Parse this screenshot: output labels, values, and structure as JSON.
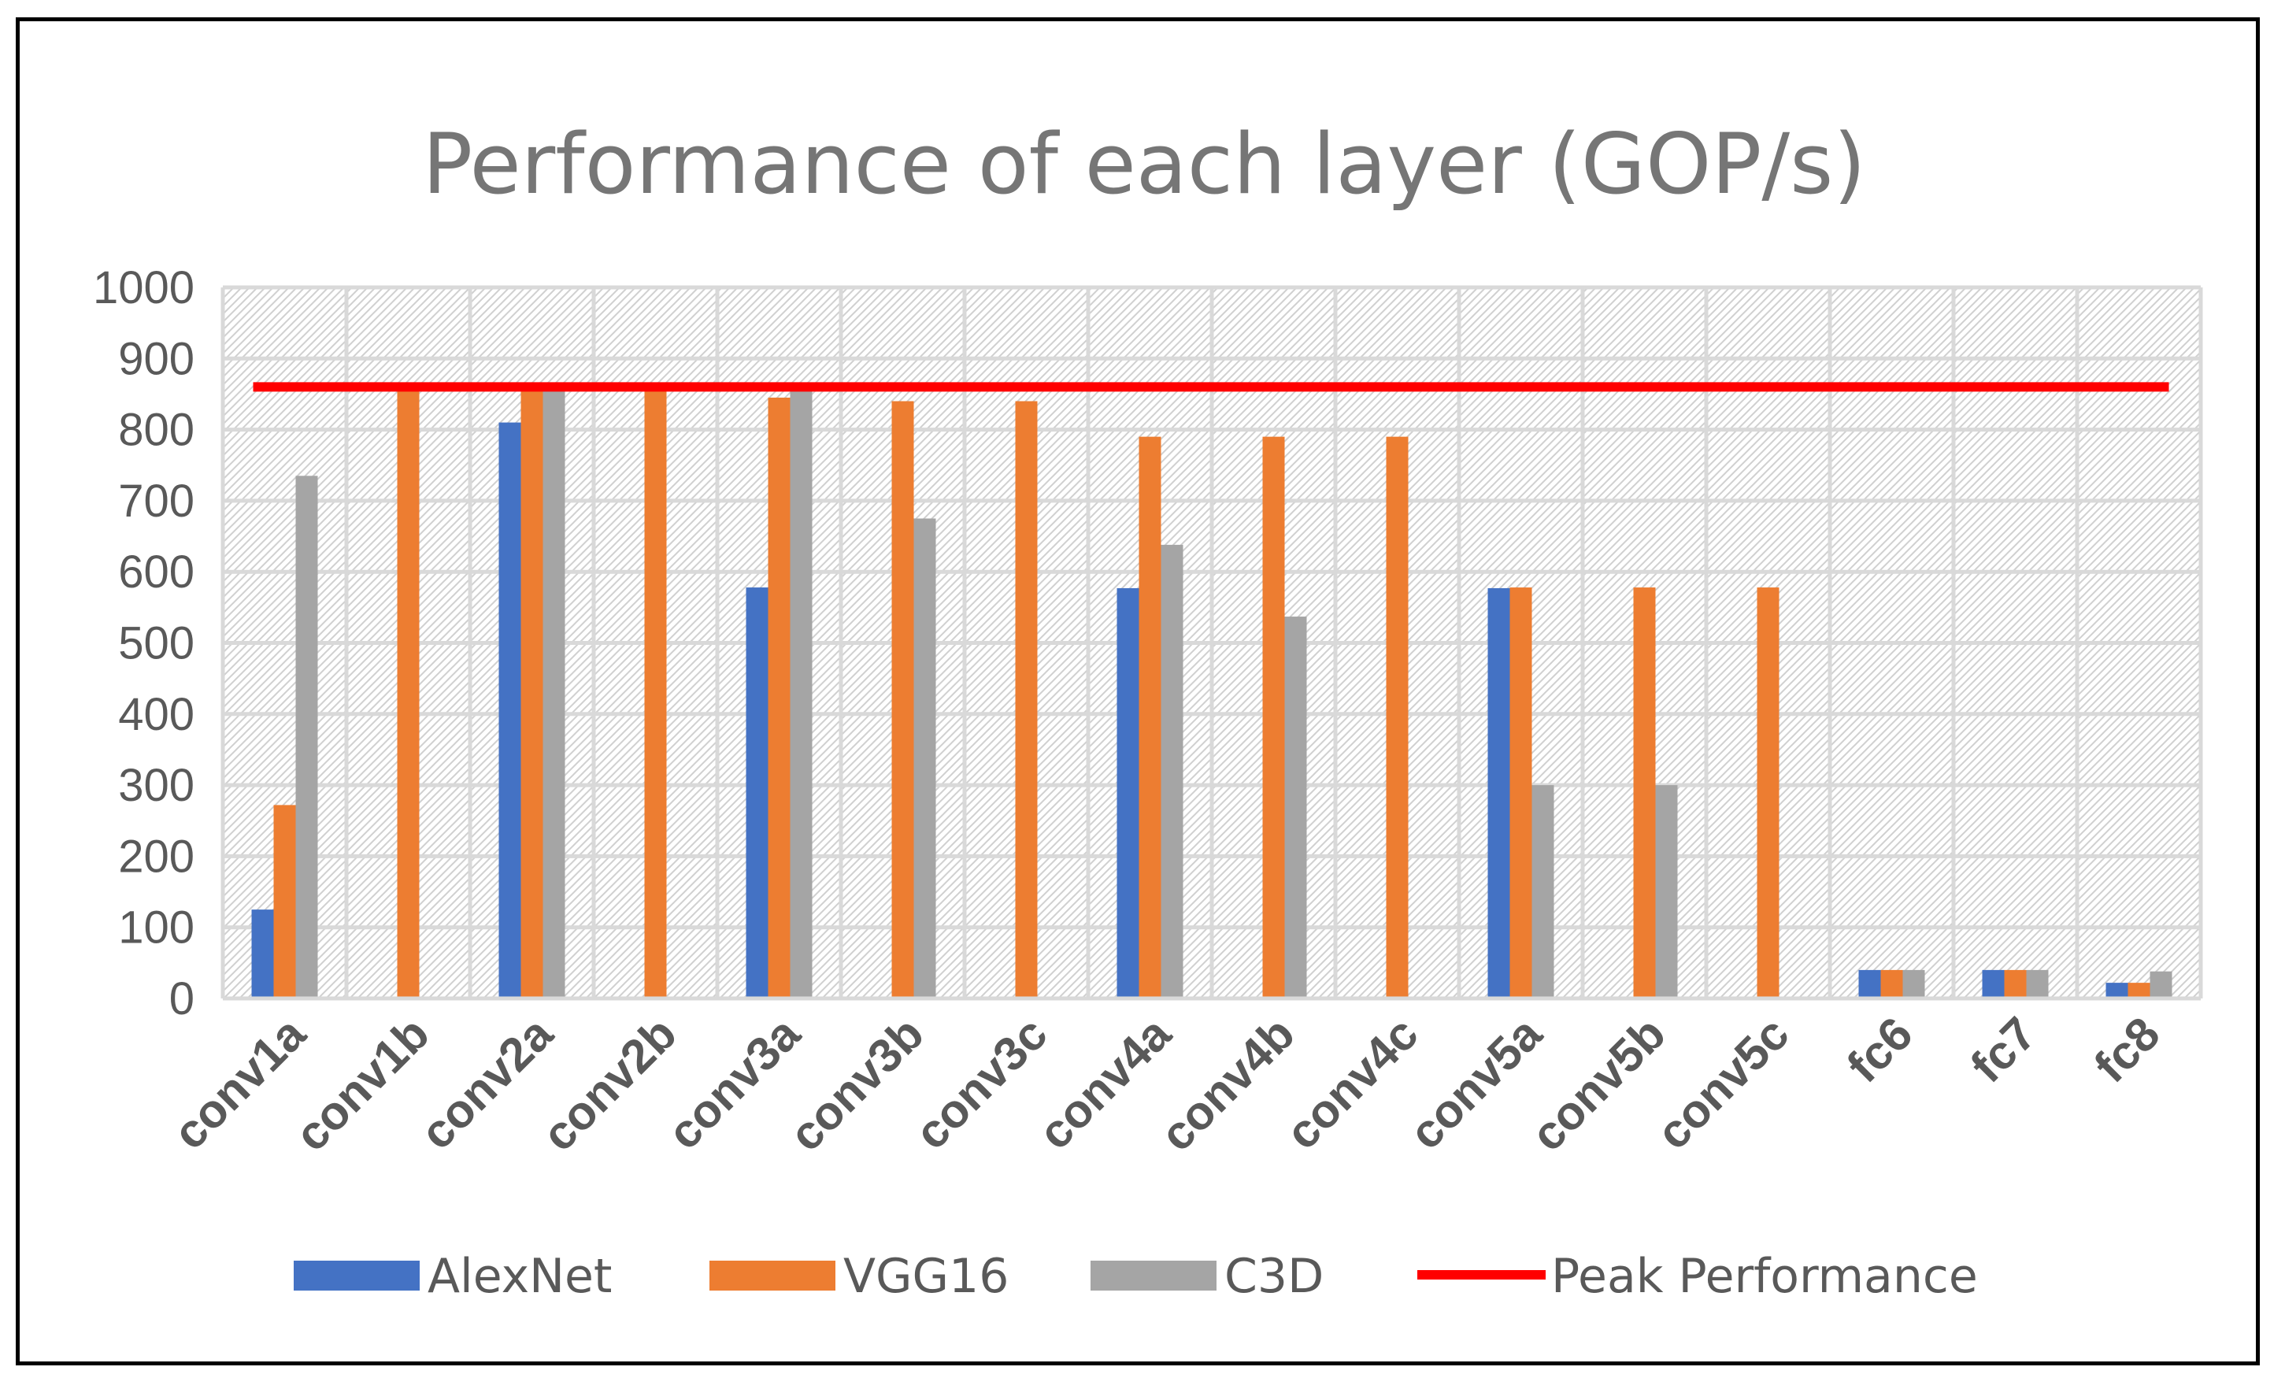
{
  "chart_data": {
    "type": "bar",
    "title": "Performance of each layer (GOP/s)",
    "xlabel": "",
    "ylabel": "",
    "ylim": [
      0,
      1000
    ],
    "yticks": [
      0,
      100,
      200,
      300,
      400,
      500,
      600,
      700,
      800,
      900,
      1000
    ],
    "grid": true,
    "legend_position": "bottom",
    "categories": [
      "conv1a",
      "conv1b",
      "conv2a",
      "conv2b",
      "conv3a",
      "conv3b",
      "conv3c",
      "conv4a",
      "conv4b",
      "conv4c",
      "conv5a",
      "conv5b",
      "conv5c",
      "fc6",
      "fc7",
      "fc8"
    ],
    "series": [
      {
        "name": "AlexNet",
        "color": "#4472C4",
        "values": [
          125,
          null,
          810,
          null,
          578,
          null,
          null,
          577,
          null,
          null,
          577,
          null,
          null,
          40,
          40,
          22
        ]
      },
      {
        "name": "VGG16",
        "color": "#ED7D31",
        "values": [
          272,
          860,
          860,
          860,
          845,
          840,
          840,
          790,
          790,
          790,
          578,
          578,
          578,
          40,
          40,
          22
        ]
      },
      {
        "name": "C3D",
        "color": "#A5A5A5",
        "values": [
          735,
          null,
          860,
          null,
          860,
          675,
          null,
          638,
          537,
          null,
          300,
          300,
          null,
          40,
          40,
          38
        ]
      }
    ],
    "reference_line": {
      "name": "Peak Performance",
      "color": "#FF0000",
      "value": 860
    }
  }
}
